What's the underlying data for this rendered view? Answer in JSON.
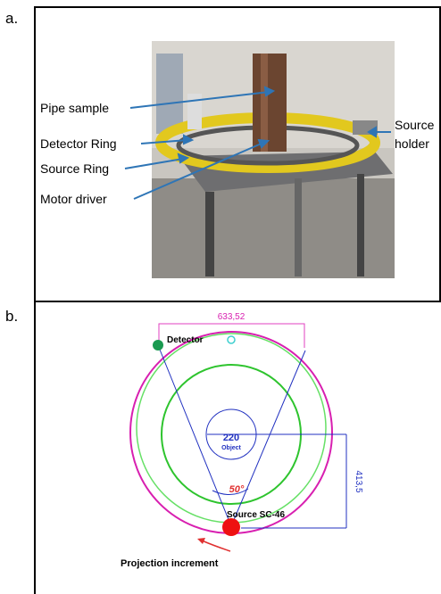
{
  "panel_a": {
    "label": "a.",
    "annotations": [
      "Pipe sample",
      "Detector Ring",
      "Source Ring",
      "Motor driver"
    ],
    "source_holder": [
      "Source",
      "holder"
    ]
  },
  "panel_b": {
    "label": "b.",
    "width_dimension": "633,52",
    "detector": "Detector",
    "object_size": "220",
    "object": "Object",
    "angle": "50°",
    "height_dimension": "413,5",
    "source": "Source SC-46",
    "caption": "Projection increment"
  }
}
